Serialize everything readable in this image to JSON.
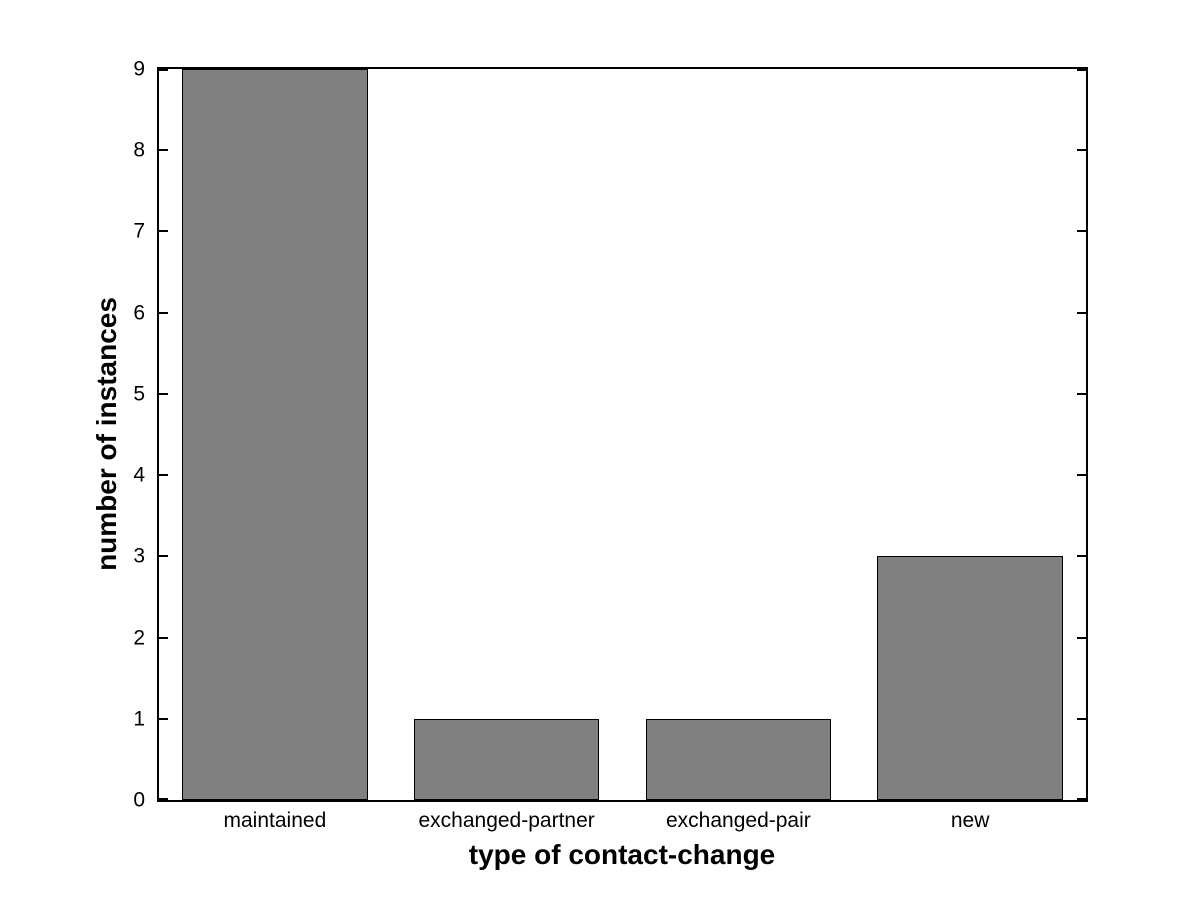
{
  "figure": {
    "background": "#ffffff"
  },
  "chart_data": {
    "type": "bar",
    "title": "",
    "xlabel": "type of contact-change",
    "ylabel": "number of instances",
    "categories": [
      "maintained",
      "exchanged-partner",
      "exchanged-pair",
      "new"
    ],
    "values": [
      9,
      1,
      1,
      3
    ],
    "ylim": [
      0,
      9
    ],
    "yticks": [
      0,
      1,
      2,
      3,
      4,
      5,
      6,
      7,
      8,
      9
    ],
    "grid": false,
    "legend": "none",
    "bar_width_fraction": 0.8,
    "colors": {
      "bar_fill": "#808080",
      "bar_edge": "#000000",
      "axis": "#000000",
      "background": "#ffffff",
      "text": "#000000"
    }
  }
}
